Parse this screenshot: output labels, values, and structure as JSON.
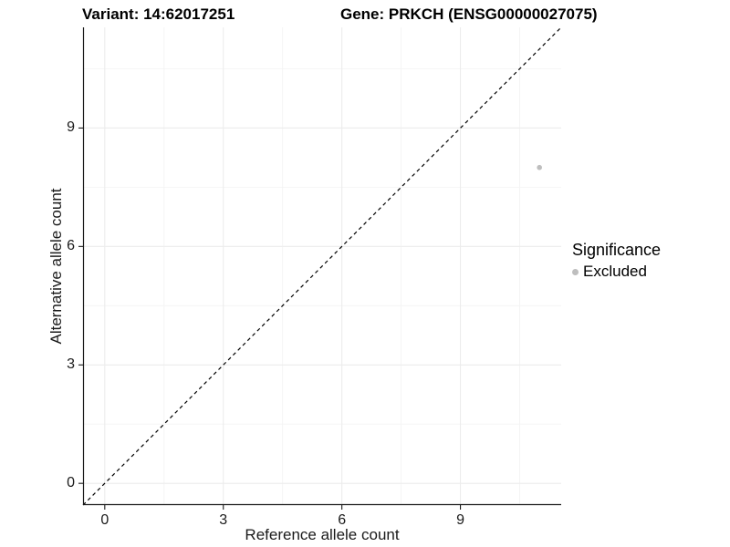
{
  "chart_data": {
    "type": "scatter",
    "title_left": "Variant: 14:62017251",
    "title_right": "Gene: PRKCH (ENSG00000027075)",
    "xlabel": "Reference allele count",
    "ylabel": "Alternative allele count",
    "xlim": [
      -0.55,
      11.55
    ],
    "ylim": [
      -0.55,
      11.55
    ],
    "xticks": [
      0,
      3,
      6,
      9
    ],
    "yticks": [
      0,
      3,
      6,
      9
    ],
    "x_minor_ticks": [
      1.5,
      4.5,
      7.5,
      10.5
    ],
    "y_minor_ticks": [
      1.5,
      4.5,
      7.5,
      10.5
    ],
    "grid": true,
    "points": [
      {
        "x": 11,
        "y": 8,
        "significance": "Excluded"
      }
    ],
    "abline": {
      "slope": 1,
      "intercept": 0,
      "style": "dashed"
    },
    "legend": {
      "position": "right",
      "title": "Significance",
      "items": [
        {
          "label": "Excluded",
          "color": "#bebebe"
        }
      ]
    },
    "colors": {
      "point": "#bebebe",
      "grid_major": "#ececec",
      "grid_minor": "#f4f4f4",
      "axis": "#1a1a1a",
      "abline": "#000000",
      "background": "#ffffff"
    }
  }
}
